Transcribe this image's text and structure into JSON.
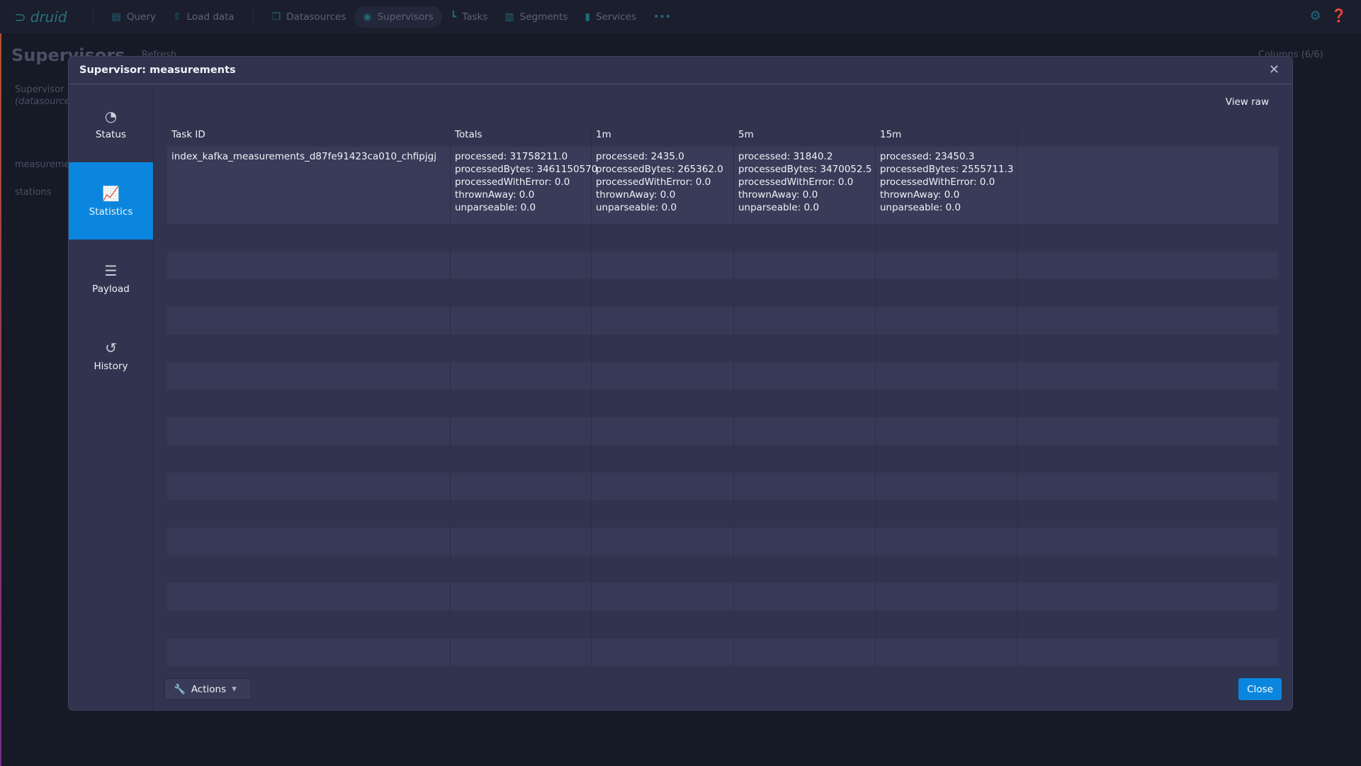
{
  "nav": {
    "logo": "druid",
    "items": [
      {
        "label": "Query",
        "icon": "document-icon"
      },
      {
        "label": "Load data",
        "icon": "cloud-upload-icon"
      },
      {
        "label": "Datasources",
        "icon": "datasource-icon"
      },
      {
        "label": "Supervisors",
        "icon": "eye-icon",
        "active": true
      },
      {
        "label": "Tasks",
        "icon": "gantt-icon"
      },
      {
        "label": "Segments",
        "icon": "stacked-chart-icon"
      },
      {
        "label": "Services",
        "icon": "database-icon"
      }
    ],
    "more": "•••"
  },
  "background": {
    "page_title": "Supervisors",
    "refresh": "Refresh",
    "columns": "Columns (6/6)",
    "col_header": "Supervisor I",
    "col_header_sub": "(datasource",
    "rows": [
      "measureme",
      "stations"
    ]
  },
  "dialog": {
    "title": "Supervisor: measurements",
    "tabs": [
      {
        "label": "Status",
        "icon": "dashboard-icon"
      },
      {
        "label": "Statistics",
        "icon": "chart-icon",
        "active": true
      },
      {
        "label": "Payload",
        "icon": "align-left-icon"
      },
      {
        "label": "History",
        "icon": "history-icon"
      }
    ],
    "view_raw": "View raw",
    "table": {
      "headers": [
        "Task ID",
        "Totals",
        "1m",
        "5m",
        "15m"
      ],
      "rows": [
        {
          "task_id": "index_kafka_measurements_d87fe91423ca010_chfipjgj",
          "totals": [
            "processed: 31758211.0",
            "processedBytes: 3461150570",
            "processedWithError: 0.0",
            "thrownAway: 0.0",
            "unparseable: 0.0"
          ],
          "m1": [
            "processed: 2435.0",
            "processedBytes: 265362.0",
            "processedWithError: 0.0",
            "thrownAway: 0.0",
            "unparseable: 0.0"
          ],
          "m5": [
            "processed: 31840.2",
            "processedBytes: 3470052.5",
            "processedWithError: 0.0",
            "thrownAway: 0.0",
            "unparseable: 0.0"
          ],
          "m15": [
            "processed: 23450.3",
            "processedBytes: 2555711.3",
            "processedWithError: 0.0",
            "thrownAway: 0.0",
            "unparseable: 0.0"
          ]
        }
      ]
    }
  },
  "footer": {
    "actions": "Actions",
    "close": "Close"
  },
  "colors": {
    "accent": "#0a86de",
    "dialog_bg": "#30344e",
    "nav_icon": "#1f6b78"
  }
}
